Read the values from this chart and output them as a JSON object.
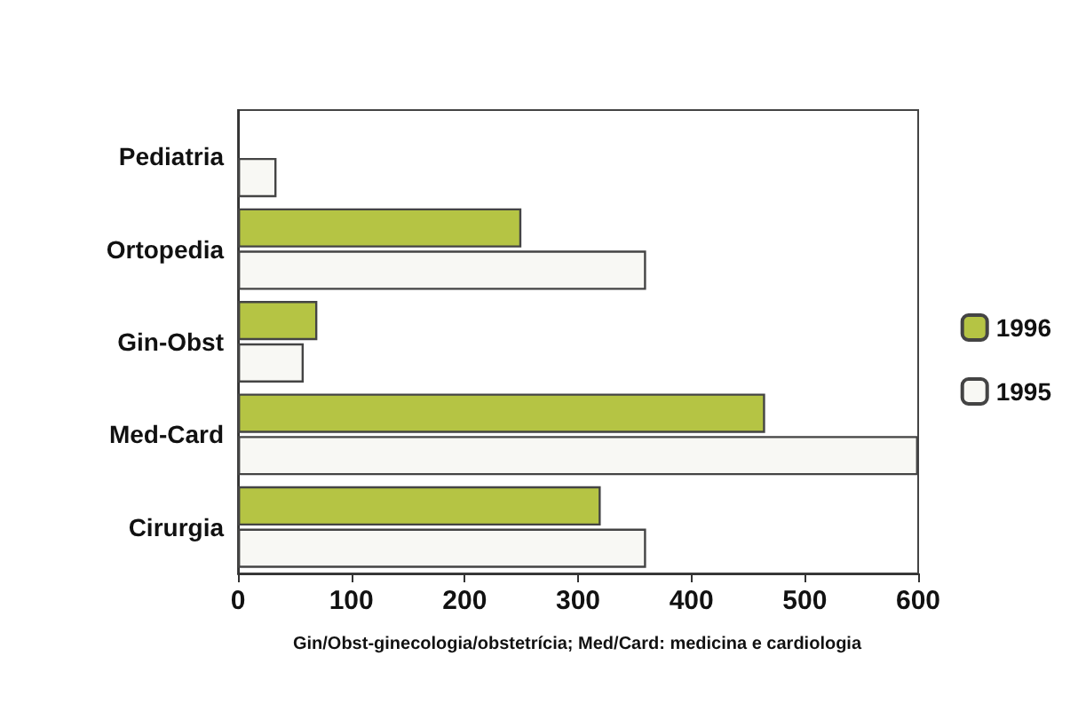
{
  "chart_data": {
    "type": "bar",
    "orientation": "horizontal",
    "categories": [
      "Pediatria",
      "Ortopedia",
      "Gin-Obst",
      "Med-Card",
      "Cirurgia"
    ],
    "series": [
      {
        "name": "1996",
        "color": "#b5c444",
        "values": [
          null,
          250,
          70,
          465,
          320
        ]
      },
      {
        "name": "1995",
        "color": "#f8f8f4",
        "values": [
          34,
          360,
          58,
          600,
          360
        ]
      }
    ],
    "xlim": [
      0,
      600
    ],
    "xticks": [
      0,
      100,
      200,
      300,
      400,
      500,
      600
    ],
    "grid": false,
    "legend": "right",
    "annotations": [
      "Gin/Obst-ginecologia/obstetrícia; Med/Card: medicina e cardiologia"
    ]
  }
}
